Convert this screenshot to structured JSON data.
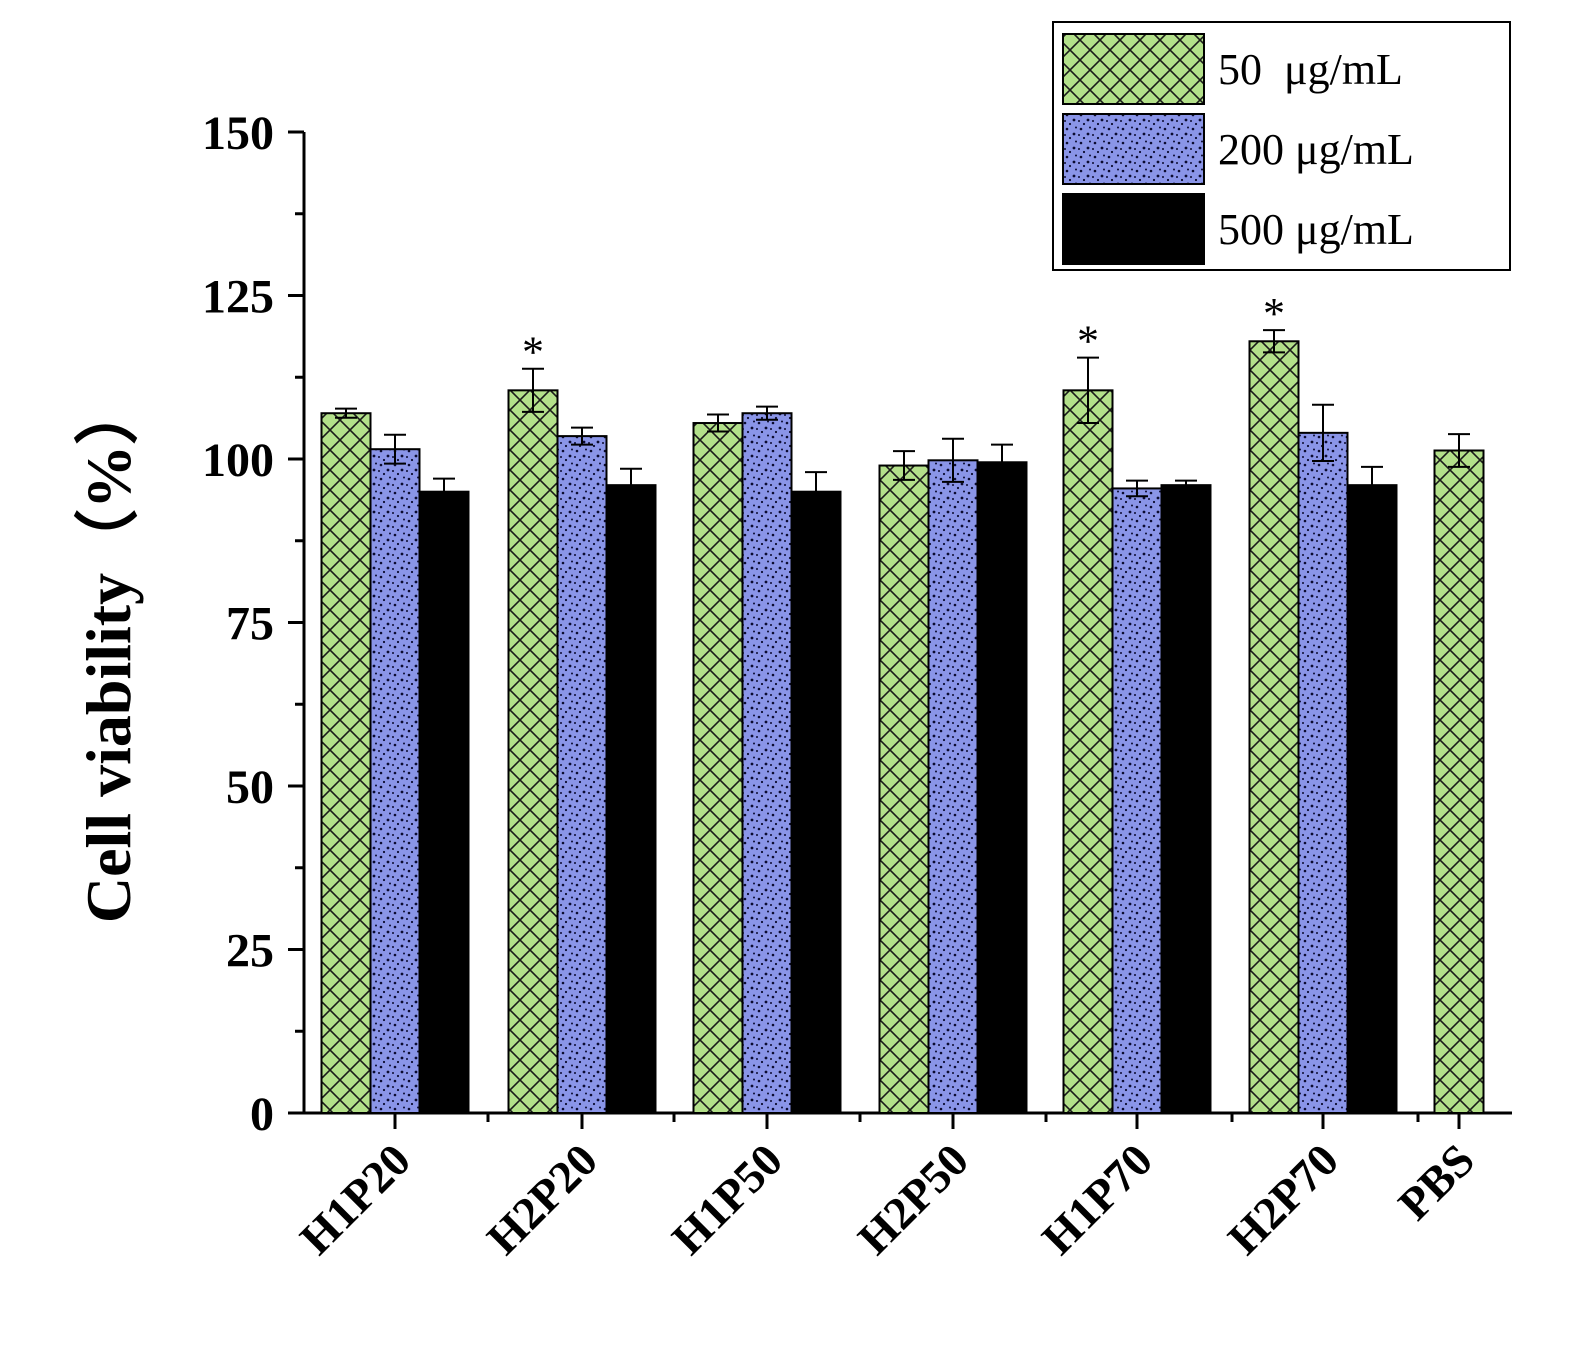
{
  "chart_data": {
    "type": "bar",
    "title": "",
    "xlabel": "",
    "ylabel": "Cell viability（%）",
    "ylim": [
      0,
      150
    ],
    "yticks": [
      "0",
      "25",
      "50",
      "75",
      "100",
      "125",
      "150"
    ],
    "categories": [
      "H1P20",
      "H2P20",
      "H1P50",
      "H2P50",
      "H1P70",
      "H2P70",
      "PBS"
    ],
    "series": [
      {
        "name": "50  μg/mL",
        "color": "#b3e08a",
        "pattern": "crosshatch",
        "values": [
          107,
          110.5,
          105.5,
          99,
          110.5,
          118,
          101.3
        ],
        "errors": [
          0.7,
          3.3,
          1.3,
          2.2,
          5.0,
          1.7,
          2.5
        ],
        "significance": [
          "",
          "*",
          "",
          "",
          "*",
          "*",
          ""
        ]
      },
      {
        "name": "200 μg/mL",
        "color": "#8a95e8",
        "pattern": "dots",
        "values": [
          101.5,
          103.5,
          107,
          99.8,
          95.5,
          104,
          null
        ],
        "errors": [
          2.2,
          1.3,
          1.0,
          3.3,
          1.2,
          4.3,
          null
        ],
        "significance": [
          "",
          "",
          "",
          "",
          "",
          "",
          ""
        ]
      },
      {
        "name": "500 μg/mL",
        "color": "#000000",
        "pattern": "solid",
        "values": [
          95,
          96,
          95,
          99.5,
          96,
          96,
          null
        ],
        "errors": [
          2.0,
          2.5,
          3.0,
          2.7,
          0.7,
          2.8,
          null
        ],
        "significance": [
          "",
          "",
          "",
          "",
          "",
          "",
          ""
        ]
      }
    ],
    "legend_position": "top-right"
  }
}
